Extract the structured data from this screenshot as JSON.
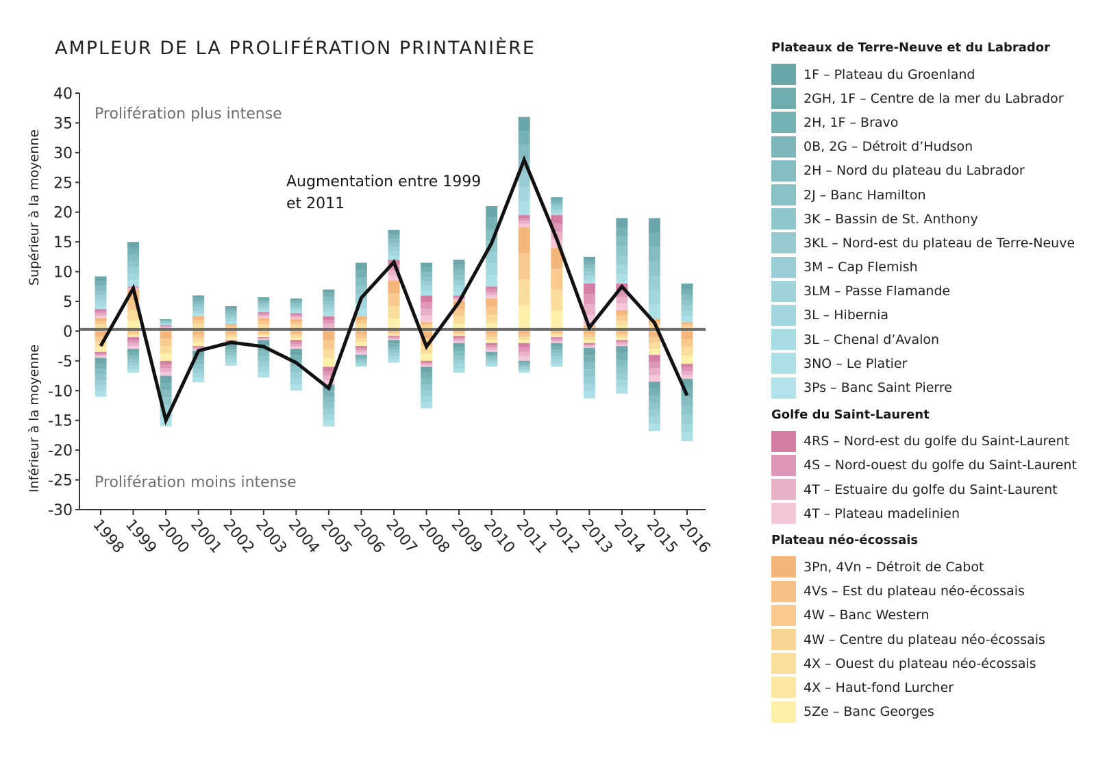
{
  "title": "AMPLEUR DE LA PROLIFÉRATION PRINTANIÈRE",
  "annotations": {
    "upper": "Prolifération plus intense",
    "lower": "Prolifération moins intense",
    "increase_line1": "Augmentation entre 1999",
    "increase_line2": "et 2011"
  },
  "legend": {
    "groups": [
      {
        "title": "Plateaux de Terre-Neuve et du Labrador",
        "items": [
          {
            "label": "1F – Plateau du Groenland",
            "color": "#6aa6aa"
          },
          {
            "label": "2GH, 1F – Centre de la mer du Labrador",
            "color": "#70abae"
          },
          {
            "label": "2H, 1F – Bravo",
            "color": "#76b1b4"
          },
          {
            "label": "0B, 2G – Détroit d’Hudson",
            "color": "#7db7ba"
          },
          {
            "label": "2H – Nord du plateau du Labrador",
            "color": "#83bdc1"
          },
          {
            "label": "2J – Banc Hamilton",
            "color": "#89c2c6"
          },
          {
            "label": "3K – Bassin de St. Anthony",
            "color": "#8fc6cb"
          },
          {
            "label": "3KL – Nord-est du plateau de Terre-Neuve",
            "color": "#94cad0"
          },
          {
            "label": "3M – Cap Flemish",
            "color": "#99ced5"
          },
          {
            "label": "3LM – Passe Flamande",
            "color": "#9ed3da"
          },
          {
            "label": "3L – Hibernia",
            "color": "#a3d7df"
          },
          {
            "label": "3L – Chenal d’Avalon",
            "color": "#a8dbe3"
          },
          {
            "label": "3NO – Le Platier",
            "color": "#addfe7"
          },
          {
            "label": "3Ps – Banc Saint Pierre",
            "color": "#b3e2ea"
          }
        ]
      },
      {
        "title": "Golfe du Saint-Laurent",
        "items": [
          {
            "label": "4RS – Nord-est du golfe du Saint-Laurent",
            "color": "#d47ea3"
          },
          {
            "label": "4S – Nord-ouest du golfe du Saint-Laurent",
            "color": "#df97b8"
          },
          {
            "label": "4T – Estuaire du golfe du Saint-Laurent",
            "color": "#e9b0c9"
          },
          {
            "label": "4T – Plateau madelinien",
            "color": "#f3c7d8"
          }
        ]
      },
      {
        "title": "Plateau néo-écossais",
        "items": [
          {
            "label": "3Pn, 4Vn – Détroit de Cabot",
            "color": "#f5b67c"
          },
          {
            "label": "4Vs – Est du plateau néo-écossais",
            "color": "#f7c086"
          },
          {
            "label": "4W – Banc Western",
            "color": "#f8ca8f"
          },
          {
            "label": "4W – Centre du plateau néo-écossais",
            "color": "#f9d396"
          },
          {
            "label": "4X – Ouest du plateau néo-écossais",
            "color": "#fadd9c"
          },
          {
            "label": "4X – Haut-fond Lurcher",
            "color": "#fbe6a2"
          },
          {
            "label": "5Ze – Banc Georges",
            "color": "#fcf0aa"
          }
        ]
      }
    ]
  },
  "chart_data": {
    "type": "bar",
    "title": "AMPLEUR DE LA PROLIFÉRATION PRINTANIÈRE",
    "ylabel_upper": "Supérieur à la moyenne",
    "ylabel_lower": "Inférieur à la moyenne",
    "ylim": [
      -30,
      40
    ],
    "yticks": [
      40,
      35,
      30,
      25,
      20,
      15,
      10,
      5,
      0,
      -5,
      -10,
      -15,
      -20,
      -25,
      -30
    ],
    "categories": [
      "1998",
      "1999",
      "2000",
      "2001",
      "2002",
      "2003",
      "2004",
      "2005",
      "2006",
      "2007",
      "2008",
      "2009",
      "2010",
      "2011",
      "2012",
      "2013",
      "2014",
      "2015",
      "2016"
    ],
    "stacks": [
      {
        "pos": {
          "teal": 5.5,
          "pink": 1.5,
          "yellow": 2.2
        },
        "neg": {
          "yellow": -3.5,
          "pink": -1.0,
          "teal": -6.5
        }
      },
      {
        "pos": {
          "teal": 7.5,
          "pink": 0.5,
          "yellow": 7.0
        },
        "neg": {
          "yellow": -1.0,
          "pink": -2.0,
          "teal": -4.0
        }
      },
      {
        "pos": {
          "teal": 1.0,
          "pink": 0.5,
          "yellow": 0.5
        },
        "neg": {
          "yellow": -5.0,
          "pink": -2.5,
          "teal": -8.5
        }
      },
      {
        "pos": {
          "teal": 3.5,
          "pink": 0.0,
          "yellow": 2.5
        },
        "neg": {
          "yellow": -2.5,
          "pink": -0.8,
          "teal": -5.3
        }
      },
      {
        "pos": {
          "teal": 3.0,
          "pink": 0.0,
          "yellow": 1.2
        },
        "neg": {
          "yellow": -1.5,
          "pink": -0.5,
          "teal": -3.8
        }
      },
      {
        "pos": {
          "teal": 2.5,
          "pink": 1.0,
          "yellow": 2.2
        },
        "neg": {
          "yellow": -1.0,
          "pink": -0.5,
          "teal": -6.3
        }
      },
      {
        "pos": {
          "teal": 2.5,
          "pink": 1.0,
          "yellow": 2.0
        },
        "neg": {
          "yellow": -1.5,
          "pink": -1.5,
          "teal": -7.0
        }
      },
      {
        "pos": {
          "teal": 4.5,
          "pink": 2.5,
          "yellow": 0.0
        },
        "neg": {
          "yellow": -6.0,
          "pink": -3.0,
          "teal": -7.0
        }
      },
      {
        "pos": {
          "teal": 9.0,
          "pink": 0.0,
          "yellow": 2.5
        },
        "neg": {
          "yellow": -2.5,
          "pink": -1.5,
          "teal": -2.0
        }
      },
      {
        "pos": {
          "teal": 5.0,
          "pink": 3.5,
          "yellow": 8.5
        },
        "neg": {
          "yellow": -0.8,
          "pink": -0.7,
          "teal": -3.8
        }
      },
      {
        "pos": {
          "teal": 5.5,
          "pink": 4.5,
          "yellow": 1.5
        },
        "neg": {
          "yellow": -5.0,
          "pink": -1.0,
          "teal": -7.0
        }
      },
      {
        "pos": {
          "teal": 6.0,
          "pink": 1.0,
          "yellow": 5.0
        },
        "neg": {
          "yellow": -0.8,
          "pink": -1.2,
          "teal": -5.0
        }
      },
      {
        "pos": {
          "teal": 13.5,
          "pink": 2.0,
          "yellow": 5.5
        },
        "neg": {
          "yellow": -2.0,
          "pink": -1.5,
          "teal": -2.5
        }
      },
      {
        "pos": {
          "teal": 16.5,
          "pink": 2.0,
          "yellow": 17.5
        },
        "neg": {
          "yellow": -2.0,
          "pink": -3.0,
          "teal": -2.0
        }
      },
      {
        "pos": {
          "teal": 3.0,
          "pink": 5.5,
          "yellow": 14.0
        },
        "neg": {
          "yellow": -1.0,
          "pink": -1.0,
          "teal": -4.0
        }
      },
      {
        "pos": {
          "teal": 4.5,
          "pink": 7.0,
          "yellow": 1.0
        },
        "neg": {
          "yellow": -2.0,
          "pink": -0.8,
          "teal": -8.5
        }
      },
      {
        "pos": {
          "teal": 11.0,
          "pink": 4.5,
          "yellow": 3.5
        },
        "neg": {
          "yellow": -1.5,
          "pink": -1.0,
          "teal": -8.0
        }
      },
      {
        "pos": {
          "teal": 17.0,
          "pink": 0.0,
          "yellow": 2.0
        },
        "neg": {
          "yellow": -4.0,
          "pink": -4.5,
          "teal": -8.3
        }
      },
      {
        "pos": {
          "teal": 6.5,
          "pink": 0.0,
          "yellow": 1.5
        },
        "neg": {
          "yellow": -5.5,
          "pink": -2.5,
          "teal": -10.5
        }
      }
    ],
    "line": {
      "values": [
        -2.5,
        7.2,
        -15.0,
        -3.3,
        -1.9,
        -2.6,
        -5.3,
        -9.6,
        5.6,
        11.6,
        -2.6,
        4.9,
        14.8,
        28.8,
        15.5,
        0.6,
        7.5,
        1.4,
        -10.8
      ]
    },
    "zero_line": 0.3,
    "colors": {
      "teal": [
        "#6aa6aa",
        "#76b1b4",
        "#83bdc1",
        "#8fc6cb",
        "#99ced5",
        "#a3d7df",
        "#addfe7"
      ],
      "pink": [
        "#d47ea3",
        "#df97b8",
        "#e9b0c9",
        "#f3c7d8"
      ],
      "yellow": [
        "#f5b67c",
        "#f8ca8f",
        "#fadd9c",
        "#fcf0aa"
      ],
      "axis": "#333333",
      "zero_line": "#6b6b6b",
      "line": "#111111"
    },
    "grid": false,
    "legend_position": "right"
  }
}
